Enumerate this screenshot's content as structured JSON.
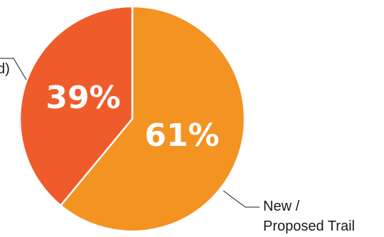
{
  "chart_data": {
    "type": "pie",
    "slices": [
      {
        "label_lines": [
          "New /",
          "Proposed Trail"
        ],
        "value": 61,
        "value_label": "61%",
        "color": "#F39321"
      },
      {
        "label_lines": [
          "d)"
        ],
        "value": 39,
        "value_label": "39%",
        "color": "#EF5B2B"
      }
    ]
  }
}
